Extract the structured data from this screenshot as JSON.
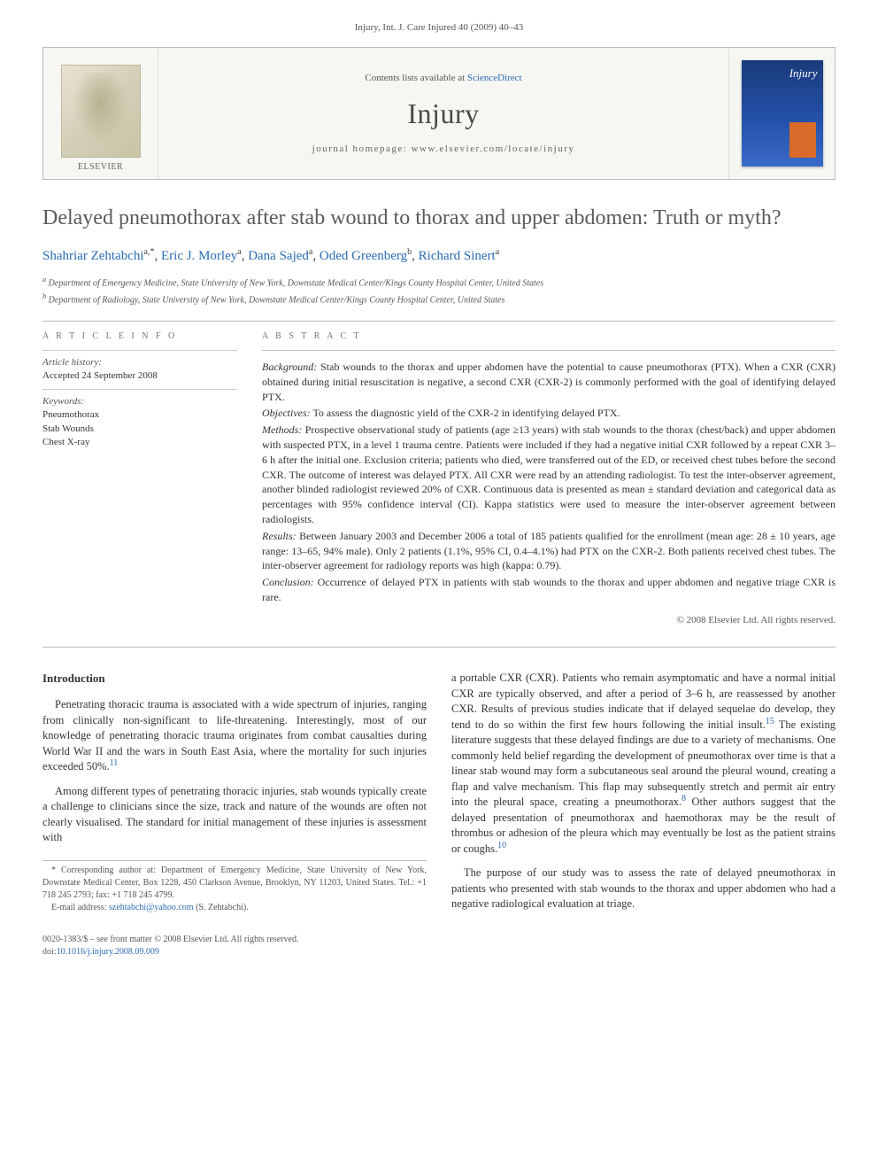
{
  "runningHead": "Injury, Int. J. Care Injured 40 (2009) 40–43",
  "masthead": {
    "publisherName": "ELSEVIER",
    "contentsPrefix": "Contents lists available at ",
    "contentsLink": "ScienceDirect",
    "journalName": "Injury",
    "homepageLabel": "journal homepage: www.elsevier.com/locate/injury",
    "coverTitle": "Injury"
  },
  "article": {
    "title": "Delayed pneumothorax after stab wound to thorax and upper abdomen: Truth or myth?",
    "authors": [
      {
        "name": "Shahriar Zehtabchi",
        "affil": "a",
        "corr": true
      },
      {
        "name": "Eric J. Morley",
        "affil": "a"
      },
      {
        "name": "Dana Sajed",
        "affil": "a"
      },
      {
        "name": "Oded Greenberg",
        "affil": "b"
      },
      {
        "name": "Richard Sinert",
        "affil": "a"
      }
    ],
    "affiliations": {
      "a": "Department of Emergency Medicine, State University of New York, Downstate Medical Center/Kings County Hospital Center, United States",
      "b": "Department of Radiology, State University of New York, Downstate Medical Center/Kings County Hospital Center, United States"
    }
  },
  "info": {
    "heading": "A R T I C L E   I N F O",
    "historyLabel": "Article history:",
    "accepted": "Accepted 24 September 2008",
    "keywordsLabel": "Keywords:",
    "keywords": [
      "Pneumothorax",
      "Stab Wounds",
      "Chest X-ray"
    ]
  },
  "abstract": {
    "heading": "A B S T R A C T",
    "background": "Stab wounds to the thorax and upper abdomen have the potential to cause pneumothorax (PTX). When a CXR (CXR) obtained during initial resuscitation is negative, a second CXR (CXR-2) is commonly performed with the goal of identifying delayed PTX.",
    "objectives": "To assess the diagnostic yield of the CXR-2 in identifying delayed PTX.",
    "methods": "Prospective observational study of patients (age ≥13 years) with stab wounds to the thorax (chest/back) and upper abdomen with suspected PTX, in a level 1 trauma centre. Patients were included if they had a negative initial CXR followed by a repeat CXR 3–6 h after the initial one. Exclusion criteria; patients who died, were transferred out of the ED, or received chest tubes before the second CXR. The outcome of interest was delayed PTX. All CXR were read by an attending radiologist. To test the inter-observer agreement, another blinded radiologist reviewed 20% of CXR. Continuous data is presented as mean ± standard deviation and categorical data as percentages with 95% confidence interval (CI). Kappa statistics were used to measure the inter-observer agreement between radiologists.",
    "results": "Between January 2003 and December 2006 a total of 185 patients qualified for the enrollment (mean age: 28 ± 10 years, age range: 13–65, 94% male). Only 2 patients (1.1%, 95% CI, 0.4–4.1%) had PTX on the CXR-2. Both patients received chest tubes. The inter-observer agreement for radiology reports was high (kappa: 0.79).",
    "conclusion": "Occurrence of delayed PTX in patients with stab wounds to the thorax and upper abdomen and negative triage CXR is rare.",
    "labels": {
      "background": "Background:",
      "objectives": "Objectives:",
      "methods": "Methods:",
      "results": "Results:",
      "conclusion": "Conclusion:"
    },
    "copyright": "© 2008 Elsevier Ltd. All rights reserved."
  },
  "body": {
    "introHeading": "Introduction",
    "p1": "Penetrating thoracic trauma is associated with a wide spectrum of injuries, ranging from clinically non-significant to life-threatening. Interestingly, most of our knowledge of penetrating thoracic trauma originates from combat causalties during World War II and the wars in South East Asia, where the mortality for such injuries exceeded 50%.",
    "p1ref": "11",
    "p2a": "Among different types of penetrating thoracic injuries, stab wounds typically create a challenge to clinicians since the size, track and nature of the wounds are often not clearly visualised. The standard for initial management of these injuries is assessment with ",
    "p2b": "a portable CXR (CXR). Patients who remain asymptomatic and have a normal initial CXR are typically observed, and after a period of 3–6 h, are reassessed by another CXR. Results of previous studies indicate that if delayed sequelae do develop, they tend to do so within the first few hours following the initial insult.",
    "p2ref1": "15",
    "p2c": " The existing literature suggests that these delayed findings are due to a variety of mechanisms. One commonly held belief regarding the development of pneumothorax over time is that a linear stab wound may form a subcutaneous seal around the pleural wound, creating a flap and valve mechanism. This flap may subsequently stretch and permit air entry into the pleural space, creating a pneumothorax.",
    "p2ref2": "8",
    "p2d": " Other authors suggest that the delayed presentation of pneumothorax and haemothorax may be the result of thrombus or adhesion of the pleura which may eventually be lost as the patient strains or coughs.",
    "p2ref3": "10",
    "p3": "The purpose of our study was to assess the rate of delayed pneumothorax in patients who presented with stab wounds to the thorax and upper abdomen who had a negative radiological evaluation at triage."
  },
  "footnote": {
    "corr": "* Corresponding author at: Department of Emergency Medicine, State University of New York, Downstate Medical Center, Box 1228, 450 Clarkson Avenue, Brooklyn, NY 11203, United States. Tel.: +1 718 245 2793; fax: +1 718 245 4799.",
    "emailLabel": "E-mail address:",
    "email": "szehtabchi@yahoo.com",
    "emailSuffix": "(S. Zehtabchi)."
  },
  "footer": {
    "left1": "0020-1383/$ – see front matter © 2008 Elsevier Ltd. All rights reserved.",
    "left2prefix": "doi:",
    "doi": "10.1016/j.injury.2008.09.009"
  },
  "style": {
    "links": "#2a6bb3",
    "borders": "#bbbbbb",
    "pageWidth": 992,
    "pageHeight": 1323
  }
}
